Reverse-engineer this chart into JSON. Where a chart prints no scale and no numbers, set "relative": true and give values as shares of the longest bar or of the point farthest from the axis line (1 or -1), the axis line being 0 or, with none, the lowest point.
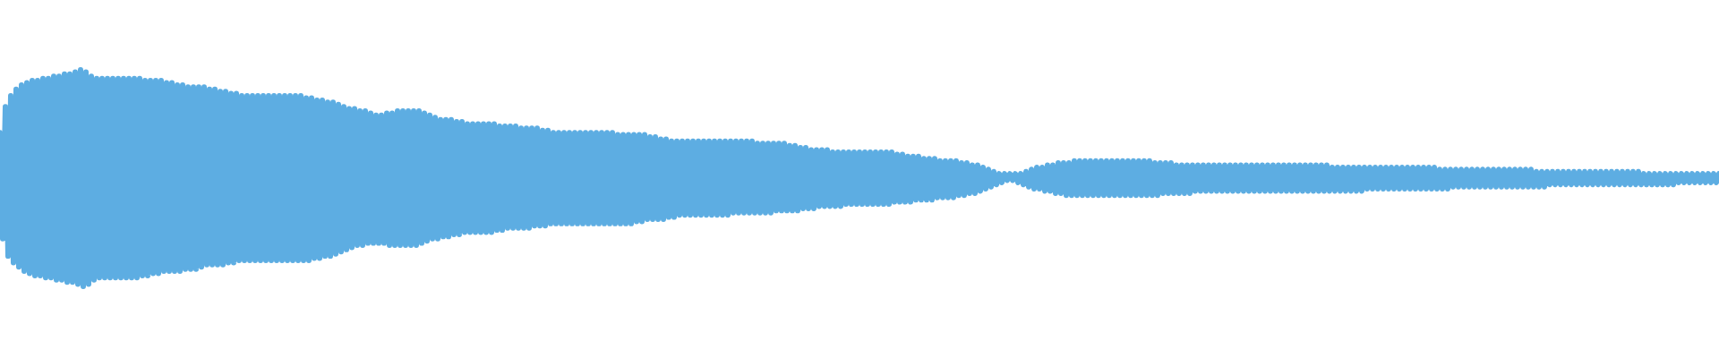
{
  "chart_data": {
    "type": "line",
    "relative": true,
    "color": "#5dade2",
    "categories": [
      null,
      null,
      null,
      null,
      null,
      null,
      null,
      null,
      null,
      null,
      null,
      null,
      null,
      null,
      null,
      null,
      null,
      null,
      null,
      null,
      null,
      null,
      null,
      null,
      null,
      null,
      null,
      null,
      null,
      null,
      null,
      null,
      null,
      null,
      null,
      null,
      null,
      null,
      null,
      null,
      null,
      null,
      null,
      null,
      null,
      null,
      null,
      null,
      null,
      null,
      null,
      null,
      null,
      null,
      null,
      null,
      null,
      null,
      null,
      null,
      null,
      null,
      null,
      null,
      null,
      null,
      null,
      null,
      null,
      null,
      null,
      null,
      null,
      null,
      null,
      null,
      null,
      null,
      null,
      null,
      null,
      null,
      null,
      null,
      null,
      null,
      null,
      null,
      null,
      null,
      null,
      null,
      null,
      null,
      null,
      null,
      null,
      null,
      null,
      null,
      null,
      null,
      null,
      null,
      null,
      null,
      null,
      null,
      null,
      null,
      null,
      null,
      null,
      null,
      null,
      null,
      null,
      null,
      null,
      null,
      null,
      null,
      null,
      null,
      null,
      null,
      null,
      null,
      null,
      null,
      null,
      null,
      null,
      null,
      null,
      null,
      null,
      null,
      null,
      null,
      null,
      null,
      null,
      null,
      null,
      null,
      null,
      null,
      null,
      null,
      null,
      null,
      null,
      null,
      null,
      null,
      null,
      null,
      null,
      null,
      null,
      null,
      null,
      null,
      null,
      null,
      null,
      null,
      null,
      null,
      null,
      null,
      null,
      null,
      null,
      null,
      null,
      null,
      null,
      null,
      null,
      null,
      null,
      null,
      null,
      null,
      null,
      null,
      null,
      null,
      null,
      null,
      null,
      null,
      null,
      null,
      null,
      null,
      null,
      null,
      null,
      null,
      null,
      null,
      null,
      null,
      null,
      null,
      null,
      null,
      null,
      null,
      null,
      null,
      null,
      null,
      null,
      null,
      null,
      null,
      null,
      null,
      null,
      null,
      null,
      null,
      null,
      null,
      null,
      null,
      null,
      null,
      null,
      null,
      null,
      null,
      null,
      null,
      null,
      null,
      null,
      null,
      null,
      null,
      null,
      null,
      null,
      null,
      null,
      null,
      null,
      null,
      null,
      null,
      null,
      null,
      null,
      null,
      null,
      null,
      null,
      null,
      null,
      null,
      null,
      null,
      null,
      null,
      null,
      null,
      null,
      null,
      null,
      null,
      null,
      null,
      null,
      null,
      null,
      null,
      null,
      null,
      null,
      null,
      null,
      null,
      null,
      null,
      null,
      null,
      null,
      null,
      null,
      null,
      null,
      null,
      null,
      null,
      null,
      null,
      null,
      null,
      null,
      null,
      null,
      null,
      null,
      null,
      null,
      null,
      null,
      null,
      null,
      null,
      null,
      null,
      null,
      null,
      null,
      null,
      null,
      null,
      null,
      null,
      null,
      null,
      null,
      null,
      null,
      null,
      null,
      null,
      null,
      null,
      null,
      null,
      null,
      null,
      null,
      null,
      null,
      null,
      null,
      null,
      null,
      null,
      null,
      null,
      null,
      null,
      null,
      null,
      null,
      null,
      null,
      null,
      null,
      null,
      null,
      null,
      null,
      null,
      null,
      null,
      null,
      null,
      null,
      null,
      null,
      null,
      null,
      null,
      null,
      null,
      null,
      null,
      null,
      null,
      null,
      null,
      null,
      null,
      null,
      null,
      null,
      null,
      null,
      null,
      null,
      null,
      null,
      null,
      null,
      null,
      null,
      null,
      null,
      null,
      null,
      null,
      null,
      null,
      null,
      null,
      null,
      null,
      null,
      null,
      null,
      null,
      null,
      null,
      null,
      null,
      null,
      null,
      null,
      null,
      null,
      null,
      null,
      null,
      null,
      null,
      null,
      null,
      null,
      null,
      null,
      null,
      null,
      null,
      null,
      null,
      null,
      null,
      null,
      null,
      null,
      null,
      null,
      null,
      null,
      null,
      null,
      null,
      null,
      null,
      null,
      null,
      null,
      null,
      null,
      null,
      null,
      null,
      null,
      null,
      null,
      null,
      null,
      null,
      null,
      null,
      null,
      null,
      null,
      null,
      null,
      null,
      null,
      null,
      null,
      null,
      null,
      null,
      null,
      null,
      null,
      null,
      null,
      null,
      null,
      null,
      null,
      null,
      null,
      null,
      null,
      null,
      null,
      null,
      null,
      null,
      null,
      null,
      null,
      null,
      null,
      null,
      null,
      null,
      null,
      null,
      null,
      null,
      null,
      null,
      null,
      null,
      null,
      null,
      null,
      null,
      null,
      null,
      null,
      null,
      null,
      null,
      null,
      null,
      null,
      null,
      null,
      null,
      null,
      null,
      null,
      null,
      null,
      null,
      null,
      null,
      null,
      null,
      null,
      null,
      null,
      null,
      null,
      null,
      null,
      null,
      null,
      null,
      null,
      null,
      null,
      null,
      null,
      null,
      null,
      null,
      null,
      null,
      null,
      null,
      null,
      null,
      null,
      null,
      null,
      null,
      null,
      null,
      null,
      null,
      null,
      null,
      null,
      null,
      null,
      null,
      null,
      null,
      null,
      null,
      null,
      null,
      null,
      null,
      null,
      null,
      null,
      null,
      null,
      null,
      null,
      null,
      null,
      null,
      null,
      null,
      null,
      null,
      null,
      null,
      null,
      null,
      null,
      null,
      null,
      null,
      null,
      null,
      null,
      null,
      null,
      null,
      null,
      null,
      null,
      null,
      null,
      null,
      null,
      null,
      null,
      null,
      null,
      null,
      null,
      null,
      null,
      null,
      null,
      null,
      null,
      null,
      null,
      null,
      null,
      null,
      null,
      null,
      null,
      null,
      null,
      null,
      null
    ],
    "values": [
      0.71,
      0.22,
      0.83,
      0.14,
      0.88,
      0.11,
      0.91,
      0.09,
      0.93,
      0.07,
      0.94,
      0.06,
      0.95,
      0.05,
      0.95,
      0.05,
      0.96,
      0.04,
      0.96,
      0.04,
      0.97,
      0.03,
      0.97,
      0.03,
      0.98,
      0.02,
      0.98,
      0.02,
      0.99,
      0.01,
      1.0,
      0.0,
      0.99,
      0.01,
      0.97,
      0.03,
      0.96,
      0.04,
      0.96,
      0.04,
      0.96,
      0.04,
      0.96,
      0.04,
      0.96,
      0.04,
      0.96,
      0.04,
      0.96,
      0.04,
      0.96,
      0.04,
      0.96,
      0.05,
      0.95,
      0.05,
      0.95,
      0.06,
      0.95,
      0.06,
      0.95,
      0.07,
      0.94,
      0.07,
      0.94,
      0.07,
      0.93,
      0.07,
      0.93,
      0.08,
      0.92,
      0.08,
      0.92,
      0.08,
      0.92,
      0.09,
      0.92,
      0.1,
      0.91,
      0.1,
      0.91,
      0.1,
      0.9,
      0.1,
      0.9,
      0.11,
      0.89,
      0.11,
      0.89,
      0.12,
      0.88,
      0.12,
      0.88,
      0.12,
      0.88,
      0.12,
      0.88,
      0.12,
      0.88,
      0.12,
      0.88,
      0.12,
      0.88,
      0.12,
      0.88,
      0.12,
      0.88,
      0.12,
      0.88,
      0.12,
      0.88,
      0.12,
      0.88,
      0.12,
      0.87,
      0.12,
      0.87,
      0.13,
      0.86,
      0.13,
      0.86,
      0.14,
      0.85,
      0.14,
      0.85,
      0.15,
      0.84,
      0.16,
      0.83,
      0.17,
      0.82,
      0.18,
      0.82,
      0.19,
      0.81,
      0.19,
      0.81,
      0.2,
      0.8,
      0.2,
      0.79,
      0.2,
      0.79,
      0.2,
      0.8,
      0.19,
      0.8,
      0.19,
      0.81,
      0.19,
      0.81,
      0.19,
      0.81,
      0.19,
      0.81,
      0.19,
      0.81,
      0.2,
      0.8,
      0.21,
      0.79,
      0.22,
      0.78,
      0.22,
      0.77,
      0.23,
      0.77,
      0.23,
      0.77,
      0.24,
      0.76,
      0.24,
      0.76,
      0.25,
      0.75,
      0.25,
      0.75,
      0.25,
      0.75,
      0.25,
      0.75,
      0.25,
      0.75,
      0.25,
      0.75,
      0.26,
      0.74,
      0.26,
      0.74,
      0.27,
      0.74,
      0.27,
      0.74,
      0.27,
      0.73,
      0.27,
      0.73,
      0.27,
      0.73,
      0.28,
      0.73,
      0.28,
      0.72,
      0.28,
      0.72,
      0.29,
      0.71,
      0.29,
      0.71,
      0.29,
      0.71,
      0.29,
      0.71,
      0.29,
      0.71,
      0.29,
      0.71,
      0.29,
      0.71,
      0.29,
      0.71,
      0.29,
      0.71,
      0.29,
      0.71,
      0.29,
      0.71,
      0.29,
      0.71,
      0.29,
      0.7,
      0.29,
      0.7,
      0.29,
      0.7,
      0.29,
      0.7,
      0.3,
      0.7,
      0.3,
      0.7,
      0.31,
      0.69,
      0.31,
      0.69,
      0.31,
      0.68,
      0.31,
      0.68,
      0.32,
      0.67,
      0.32,
      0.67,
      0.33,
      0.67,
      0.33,
      0.67,
      0.33,
      0.67,
      0.33,
      0.67,
      0.33,
      0.67,
      0.33,
      0.67,
      0.33,
      0.67,
      0.33,
      0.67,
      0.33,
      0.67,
      0.33,
      0.67,
      0.34,
      0.67,
      0.34,
      0.67,
      0.34,
      0.67,
      0.34,
      0.67,
      0.34,
      0.66,
      0.34,
      0.66,
      0.34,
      0.66,
      0.34,
      0.66,
      0.35,
      0.66,
      0.35,
      0.66,
      0.35,
      0.65,
      0.35,
      0.65,
      0.35,
      0.64,
      0.36,
      0.64,
      0.36,
      0.63,
      0.36,
      0.63,
      0.37,
      0.63,
      0.37,
      0.63,
      0.37,
      0.62,
      0.37,
      0.62,
      0.37,
      0.62,
      0.38,
      0.62,
      0.38,
      0.62,
      0.38,
      0.62,
      0.38,
      0.62,
      0.38,
      0.62,
      0.38,
      0.62,
      0.38,
      0.62,
      0.38,
      0.62,
      0.38,
      0.62,
      0.39,
      0.61,
      0.39,
      0.61,
      0.39,
      0.6,
      0.39,
      0.6,
      0.4,
      0.6,
      0.4,
      0.59,
      0.4,
      0.59,
      0.4,
      0.59,
      0.41,
      0.58,
      0.41,
      0.58,
      0.41,
      0.58,
      0.41,
      0.58,
      0.42,
      0.57,
      0.42,
      0.57,
      0.43,
      0.56,
      0.43,
      0.56,
      0.44,
      0.55,
      0.45,
      0.54,
      0.46,
      0.53,
      0.47,
      0.52,
      0.48,
      0.52,
      0.49,
      0.52,
      0.49,
      0.52,
      0.48,
      0.52,
      0.47,
      0.53,
      0.46,
      0.54,
      0.45,
      0.55,
      0.45,
      0.55,
      0.44,
      0.56,
      0.44,
      0.56,
      0.43,
      0.57,
      0.43,
      0.57,
      0.42,
      0.57,
      0.42,
      0.58,
      0.42,
      0.58,
      0.42,
      0.58,
      0.42,
      0.58,
      0.42,
      0.58,
      0.42,
      0.58,
      0.42,
      0.58,
      0.42,
      0.58,
      0.42,
      0.58,
      0.42,
      0.58,
      0.42,
      0.58,
      0.42,
      0.58,
      0.42,
      0.58,
      0.42,
      0.58,
      0.42,
      0.58,
      0.42,
      0.57,
      0.42,
      0.57,
      0.43,
      0.57,
      0.43,
      0.57,
      0.43,
      0.56,
      0.43,
      0.56,
      0.43,
      0.56,
      0.43,
      0.56,
      0.44,
      0.56,
      0.44,
      0.56,
      0.44,
      0.56,
      0.44,
      0.56,
      0.44,
      0.56,
      0.44,
      0.56,
      0.44,
      0.56,
      0.44,
      0.56,
      0.44,
      0.56,
      0.44,
      0.56,
      0.44,
      0.56,
      0.44,
      0.56,
      0.44,
      0.56,
      0.44,
      0.56,
      0.44,
      0.56,
      0.44,
      0.56,
      0.44,
      0.56,
      0.44,
      0.56,
      0.44,
      0.56,
      0.44,
      0.56,
      0.44,
      0.56,
      0.44,
      0.56,
      0.44,
      0.56,
      0.44,
      0.56,
      0.44,
      0.56,
      0.44,
      0.55,
      0.44,
      0.55,
      0.44,
      0.55,
      0.44,
      0.55,
      0.44,
      0.55,
      0.44,
      0.55,
      0.44,
      0.55,
      0.45,
      0.55,
      0.45,
      0.55,
      0.45,
      0.55,
      0.45,
      0.55,
      0.45,
      0.55,
      0.45,
      0.55,
      0.45,
      0.55,
      0.45,
      0.55,
      0.45,
      0.55,
      0.45,
      0.55,
      0.45,
      0.55,
      0.45,
      0.55,
      0.45,
      0.55,
      0.45,
      0.54,
      0.45,
      0.54,
      0.45,
      0.54,
      0.46,
      0.54,
      0.46,
      0.54,
      0.46,
      0.54,
      0.46,
      0.54,
      0.46,
      0.54,
      0.46,
      0.54,
      0.46,
      0.54,
      0.46,
      0.54,
      0.46,
      0.54,
      0.46,
      0.54,
      0.46,
      0.54,
      0.46,
      0.54,
      0.46,
      0.54,
      0.46,
      0.54,
      0.46,
      0.54,
      0.46,
      0.53,
      0.46,
      0.53,
      0.46,
      0.53,
      0.47,
      0.53,
      0.47,
      0.53,
      0.47,
      0.53,
      0.47,
      0.53,
      0.47,
      0.53,
      0.47,
      0.53,
      0.47,
      0.53,
      0.47,
      0.53,
      0.47,
      0.53,
      0.47,
      0.53,
      0.47,
      0.53,
      0.47,
      0.53,
      0.47,
      0.53,
      0.47,
      0.53,
      0.47,
      0.53,
      0.47,
      0.53,
      0.47,
      0.53,
      0.47,
      0.52,
      0.47,
      0.52,
      0.47,
      0.52,
      0.47,
      0.52,
      0.47,
      0.52,
      0.47,
      0.52,
      0.47,
      0.52,
      0.48,
      0.52,
      0.48,
      0.52,
      0.48,
      0.52,
      0.48,
      0.52,
      0.48,
      0.52,
      0.48,
      0.52,
      0.48,
      0.52,
      0.48,
      0.52
    ]
  }
}
